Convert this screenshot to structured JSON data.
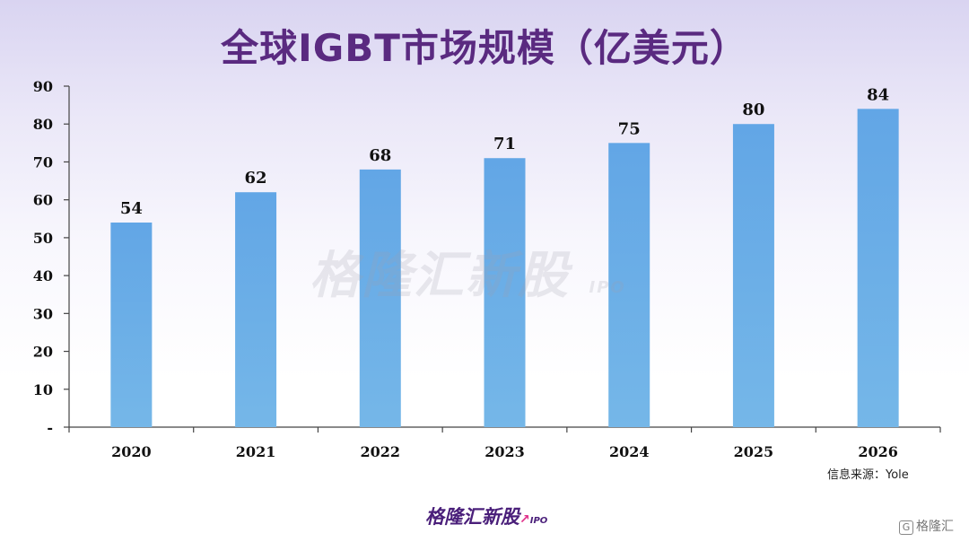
{
  "title": "全球IGBT市场规模（亿美元）",
  "source": "信息来源：Yole",
  "watermark": {
    "text": "格隆汇新股",
    "sub": "IPO"
  },
  "brand": {
    "text": "格隆汇新股",
    "sub": "IPO"
  },
  "corner_logo": {
    "icon": "G",
    "text": "格隆汇"
  },
  "colors": {
    "bar": "#6aaee6",
    "title": "#5a2a80",
    "brand": "#4a1f7a"
  },
  "chart_data": {
    "type": "bar",
    "title": "全球IGBT市场规模（亿美元）",
    "categories": [
      "2020",
      "2021",
      "2022",
      "2023",
      "2024",
      "2025",
      "2026"
    ],
    "values": [
      54,
      62,
      68,
      71,
      75,
      80,
      84
    ],
    "value_labels": [
      "54",
      "62",
      "68",
      "71",
      "75",
      "80",
      "84"
    ],
    "ylim": [
      0,
      90
    ],
    "yticks": [
      0,
      10,
      20,
      30,
      40,
      50,
      60,
      70,
      80,
      90
    ],
    "ytick_labels": [
      "-",
      "10",
      "20",
      "30",
      "40",
      "50",
      "60",
      "70",
      "80",
      "90"
    ],
    "xlabel": "",
    "ylabel": "",
    "grid": false,
    "legend": "none"
  }
}
